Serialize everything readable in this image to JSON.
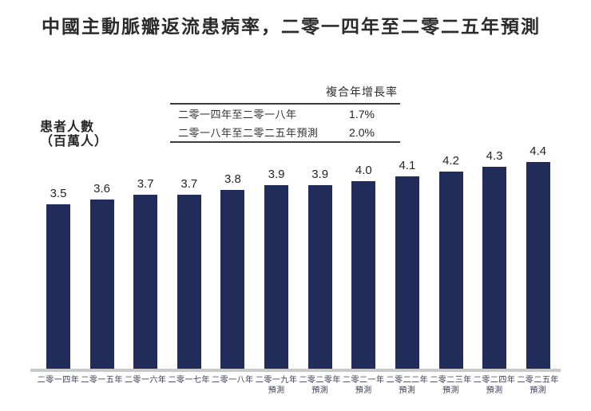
{
  "title": "中國主動脈瓣返流患病率，二零一四年至二零二五年預測",
  "y_axis": {
    "line1": "患者人數",
    "line2": "（百萬人）"
  },
  "cagr_table": {
    "header": "複合年增長率",
    "rows": [
      {
        "period": "二零一四年至二零一八年",
        "value": "1.7%"
      },
      {
        "period": "二零一八年至二零二五年預測",
        "value": "2.0%"
      }
    ]
  },
  "chart_data": {
    "type": "bar",
    "title": "中國主動脈瓣返流患病率，二零一四年至二零二五年預測",
    "ylabel": "患者人數（百萬人）",
    "ylim": [
      0,
      4.4
    ],
    "grid": false,
    "legend": "none",
    "bar_color": "#222c5a",
    "axis_line_color": "#c9c9c9",
    "categories": [
      {
        "line1": "二零一四年",
        "line2": ""
      },
      {
        "line1": "二零一五年",
        "line2": ""
      },
      {
        "line1": "二零一六年",
        "line2": ""
      },
      {
        "line1": "二零一七年",
        "line2": ""
      },
      {
        "line1": "二零一八年",
        "line2": ""
      },
      {
        "line1": "二零一九年",
        "line2": "預測"
      },
      {
        "line1": "二零二零年",
        "line2": "預測"
      },
      {
        "line1": "二零二一年",
        "line2": "預測"
      },
      {
        "line1": "二零二二年",
        "line2": "預測"
      },
      {
        "line1": "二零二三年",
        "line2": "預測"
      },
      {
        "line1": "二零二四年",
        "line2": "預測"
      },
      {
        "line1": "二零二五年",
        "line2": "預測"
      }
    ],
    "values": [
      3.5,
      3.6,
      3.7,
      3.7,
      3.8,
      3.9,
      3.9,
      4.0,
      4.1,
      4.2,
      4.3,
      4.4
    ],
    "value_labels": [
      "3.5",
      "3.6",
      "3.7",
      "3.7",
      "3.8",
      "3.9",
      "3.9",
      "4.0",
      "4.1",
      "4.2",
      "4.3",
      "4.4"
    ]
  }
}
